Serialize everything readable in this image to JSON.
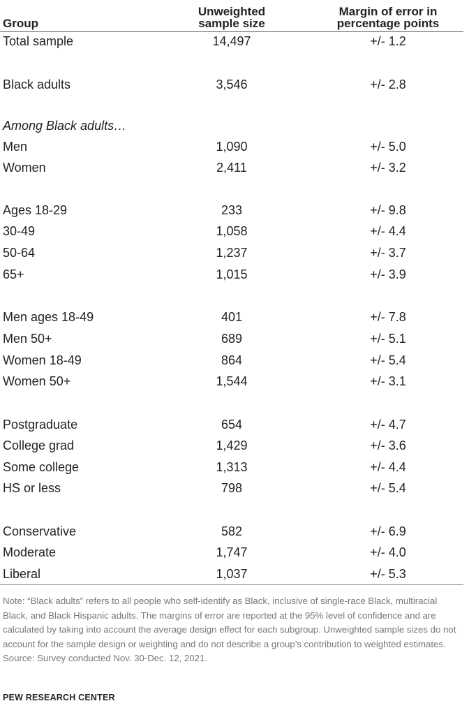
{
  "table": {
    "headers": {
      "group": "Group",
      "sample_size_line1": "Unweighted",
      "sample_size_line2": "sample size",
      "moe_line1": "Margin of error in",
      "moe_line2": "percentage points"
    },
    "rows": [
      {
        "group": "Total sample",
        "size": "14,497",
        "moe": "+/- 1.2"
      },
      {
        "group": "Black adults",
        "size": "3,546",
        "moe": "+/- 2.8"
      },
      {
        "group": "Among Black adults…",
        "size": "",
        "moe": ""
      },
      {
        "group": "Men",
        "size": "1,090",
        "moe": "+/- 5.0"
      },
      {
        "group": "Women",
        "size": "2,411",
        "moe": "+/- 3.2"
      },
      {
        "group": "Ages 18-29",
        "size": "233",
        "moe": "+/- 9.8"
      },
      {
        "group": "30-49",
        "size": "1,058",
        "moe": "+/- 4.4"
      },
      {
        "group": "50-64",
        "size": "1,237",
        "moe": "+/- 3.7"
      },
      {
        "group": "65+",
        "size": "1,015",
        "moe": "+/- 3.9"
      },
      {
        "group": "Men ages 18-49",
        "size": "401",
        "moe": "+/- 7.8"
      },
      {
        "group": "Men 50+",
        "size": "689",
        "moe": "+/- 5.1"
      },
      {
        "group": "Women 18-49",
        "size": "864",
        "moe": "+/- 5.4"
      },
      {
        "group": "Women 50+",
        "size": "1,544",
        "moe": "+/- 3.1"
      },
      {
        "group": "Postgraduate",
        "size": "654",
        "moe": "+/- 4.7"
      },
      {
        "group": "College grad",
        "size": "1,429",
        "moe": "+/- 3.6"
      },
      {
        "group": "Some college",
        "size": "1,313",
        "moe": "+/- 4.4"
      },
      {
        "group": "HS or less",
        "size": "798",
        "moe": "+/- 5.4"
      },
      {
        "group": "Conservative",
        "size": "582",
        "moe": "+/- 6.9"
      },
      {
        "group": "Moderate",
        "size": "1,747",
        "moe": "+/- 4.0"
      },
      {
        "group": "Liberal",
        "size": "1,037",
        "moe": "+/- 5.3"
      }
    ]
  },
  "footer": {
    "note": "Note: “Black adults” refers to all people who self-identify as Black, inclusive of single-race Black, multiracial Black, and Black Hispanic adults. The margins of error are reported at the 95% level of confidence and are calculated by taking into account the average design effect for each subgroup. Unweighted sample sizes do not account for the sample design or weighting and do not describe a group’s contribution to weighted estimates.",
    "source": "Source: Survey conducted Nov. 30-Dec. 12, 2021.",
    "org": "PEW RESEARCH CENTER"
  }
}
